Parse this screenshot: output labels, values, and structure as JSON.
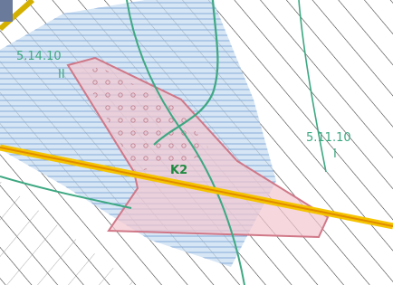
{
  "zones": [
    {
      "code": "5.14.10",
      "class": "II"
    },
    {
      "code": "5.11.10",
      "class": "I"
    }
  ],
  "marker": "K2"
}
